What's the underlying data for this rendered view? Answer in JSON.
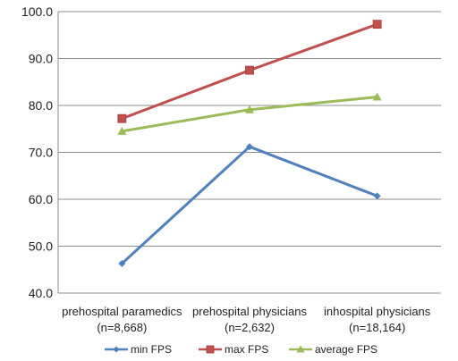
{
  "chart_data": {
    "type": "line",
    "categories": [
      [
        "prehospital paramedics",
        "(n=8,668)"
      ],
      [
        "prehospital physicians",
        "(n=2,632)"
      ],
      [
        "inhospital physicians",
        "(n=18,164)"
      ]
    ],
    "ylim": [
      40,
      100
    ],
    "yticks": [
      "40.0",
      "50.0",
      "60.0",
      "70.0",
      "80.0",
      "90.0",
      "100.0"
    ],
    "grid": true,
    "legend_position": "bottom",
    "series": [
      {
        "name": "min FPS",
        "values": [
          46.3,
          71.2,
          60.7
        ],
        "color": "#4f81bd",
        "marker": "diamond"
      },
      {
        "name": "max FPS",
        "values": [
          77.2,
          87.5,
          97.3
        ],
        "color": "#c0504d",
        "marker": "square"
      },
      {
        "name": "average FPS",
        "values": [
          74.5,
          79.1,
          81.8
        ],
        "color": "#9bbb59",
        "marker": "triangle"
      }
    ]
  }
}
